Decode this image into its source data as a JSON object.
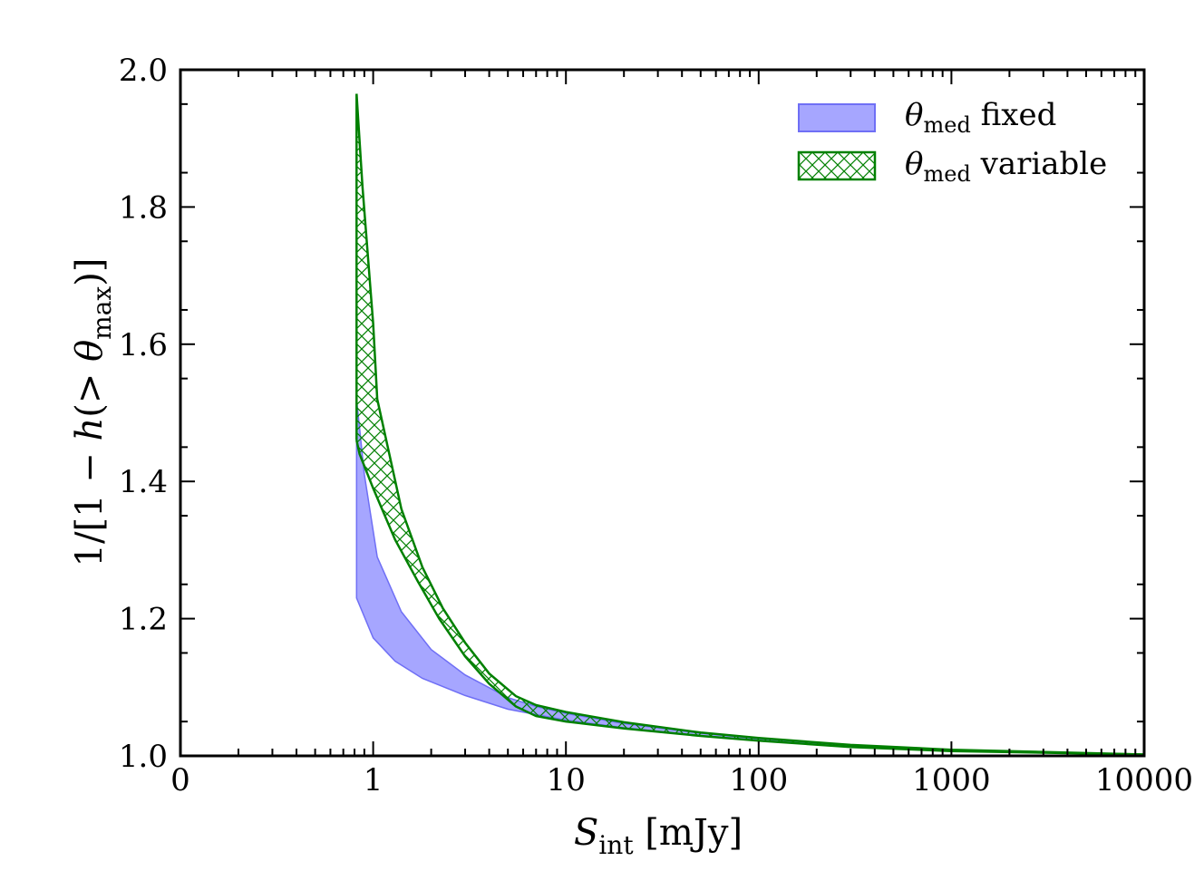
{
  "chart_data": {
    "type": "area",
    "title": "",
    "xlabel": {
      "symbol": "S",
      "sub": "int",
      "unit": " [mJy]"
    },
    "ylabel": {
      "prefix": "1/[1 − ",
      "h": "h",
      "mid": "(> ",
      "theta": "θ",
      "sub": "max",
      "suffix": ")]"
    },
    "x_scale": "log (decade ticks)",
    "xlim_decades": [
      -1,
      4
    ],
    "ylim": [
      1.0,
      2.0
    ],
    "x_ticks": [
      {
        "decade": -1,
        "label": "0"
      },
      {
        "decade": 0,
        "label": "1"
      },
      {
        "decade": 1,
        "label": "10"
      },
      {
        "decade": 2,
        "label": "100"
      },
      {
        "decade": 3,
        "label": "1000"
      },
      {
        "decade": 4,
        "label": "10000"
      }
    ],
    "y_ticks": [
      {
        "value": 1.0,
        "label": "1.0"
      },
      {
        "value": 1.2,
        "label": "1.2"
      },
      {
        "value": 1.4,
        "label": "1.4"
      },
      {
        "value": 1.6,
        "label": "1.6"
      },
      {
        "value": 1.8,
        "label": "1.8"
      },
      {
        "value": 2.0,
        "label": "2.0"
      }
    ],
    "legend_position": "top-right",
    "series": [
      {
        "name": "θ_med fixed",
        "legend": {
          "theta": "θ",
          "sub": "med",
          "text": " fixed"
        },
        "style": "filled",
        "color": "#8080ff",
        "edge_color": "#6f6ff5",
        "upper": [
          [
            0.82,
            1.52
          ],
          [
            0.9,
            1.41
          ],
          [
            1.05,
            1.29
          ],
          [
            1.4,
            1.21
          ],
          [
            2.0,
            1.155
          ],
          [
            3.0,
            1.118
          ],
          [
            5.0,
            1.085
          ],
          [
            7.0,
            1.072
          ],
          [
            10.0,
            1.062
          ],
          [
            20.0,
            1.047
          ],
          [
            50.0,
            1.033
          ],
          [
            100.0,
            1.025
          ],
          [
            300.0,
            1.015
          ],
          [
            1000.0,
            1.009
          ],
          [
            10000.0,
            1.002
          ]
        ],
        "lower": [
          [
            0.82,
            1.23
          ],
          [
            1.0,
            1.172
          ],
          [
            1.3,
            1.138
          ],
          [
            1.8,
            1.113
          ],
          [
            3.0,
            1.088
          ],
          [
            5.0,
            1.068
          ],
          [
            10.0,
            1.052
          ],
          [
            20.0,
            1.041
          ],
          [
            50.0,
            1.029
          ],
          [
            100.0,
            1.022
          ],
          [
            300.0,
            1.013
          ],
          [
            1000.0,
            1.007
          ],
          [
            10000.0,
            1.002
          ]
        ]
      },
      {
        "name": "θ_med variable",
        "legend": {
          "theta": "θ",
          "sub": "med",
          "text": " variable"
        },
        "style": "hatched",
        "color": "#008000",
        "upper": [
          [
            0.82,
            1.965
          ],
          [
            0.88,
            1.83
          ],
          [
            1.0,
            1.63
          ],
          [
            1.05,
            1.52
          ],
          [
            1.4,
            1.36
          ],
          [
            1.8,
            1.275
          ],
          [
            2.3,
            1.215
          ],
          [
            3.0,
            1.165
          ],
          [
            4.0,
            1.12
          ],
          [
            5.5,
            1.087
          ],
          [
            7.0,
            1.074
          ],
          [
            10.0,
            1.064
          ],
          [
            20.0,
            1.049
          ],
          [
            50.0,
            1.034
          ],
          [
            100.0,
            1.026
          ],
          [
            300.0,
            1.016
          ],
          [
            1000.0,
            1.009
          ],
          [
            10000.0,
            1.002
          ]
        ],
        "lower": [
          [
            0.82,
            1.46
          ],
          [
            0.85,
            1.44
          ],
          [
            1.0,
            1.39
          ],
          [
            1.3,
            1.315
          ],
          [
            1.7,
            1.255
          ],
          [
            2.2,
            1.2
          ],
          [
            3.0,
            1.145
          ],
          [
            4.0,
            1.105
          ],
          [
            5.5,
            1.072
          ],
          [
            7.0,
            1.058
          ],
          [
            10.0,
            1.05
          ],
          [
            20.0,
            1.04
          ],
          [
            50.0,
            1.029
          ],
          [
            100.0,
            1.022
          ],
          [
            300.0,
            1.013
          ],
          [
            1000.0,
            1.007
          ],
          [
            10000.0,
            1.002
          ]
        ]
      }
    ]
  }
}
